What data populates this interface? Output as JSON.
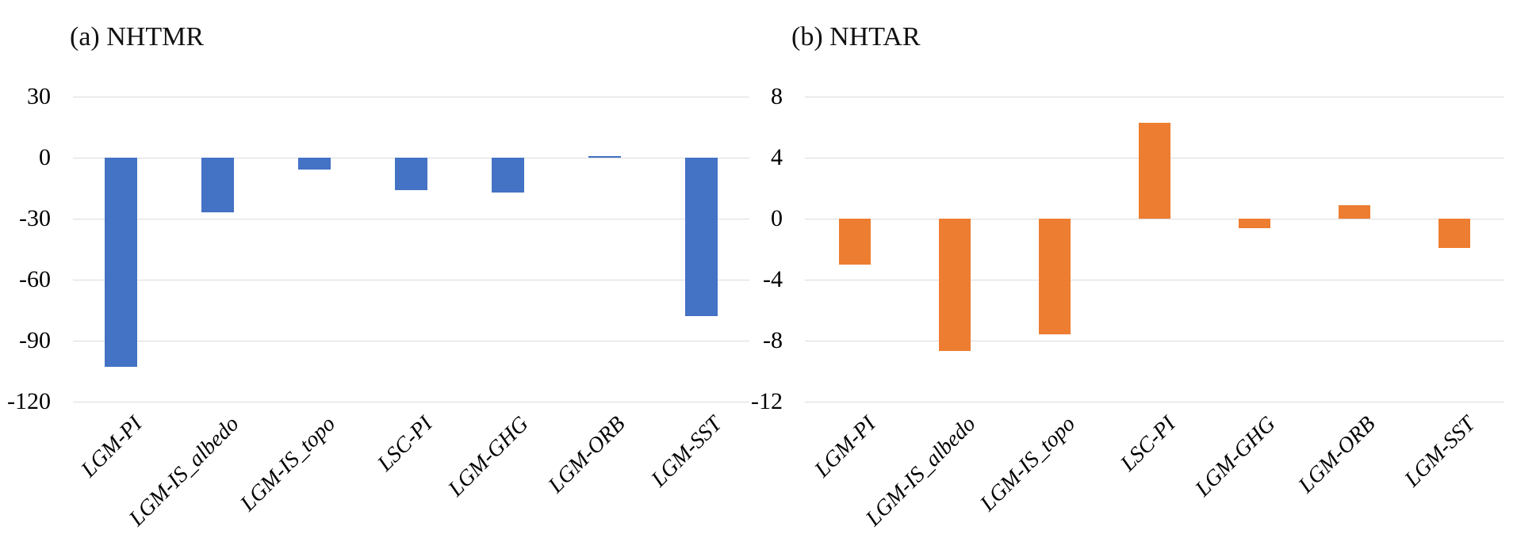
{
  "page": {
    "background": "#ffffff",
    "text_color": "#000000",
    "gridline_color": "#dcdcdc"
  },
  "chart_data": [
    {
      "id": "a",
      "type": "bar",
      "title": "(a) NHTMR",
      "xlabel": "",
      "ylabel": "",
      "bar_color": "#4472C4",
      "categories": [
        "LGM-PI",
        "LGM-IS_albedo",
        "LGM-IS_topo",
        "LSC-PI",
        "LGM-GHG",
        "LGM-ORB",
        "LGM-SST"
      ],
      "values": [
        -103,
        -27,
        -6,
        -16,
        -17,
        0.8,
        -78
      ],
      "ylim": [
        -120,
        30
      ],
      "yticks": [
        30,
        0,
        -30,
        -60,
        -90,
        -120
      ],
      "grid": true,
      "legend": "none",
      "tick_label_style": "italic-rotated-45"
    },
    {
      "id": "b",
      "type": "bar",
      "title": "(b) NHTAR",
      "xlabel": "",
      "ylabel": "",
      "bar_color": "#ED7D31",
      "categories": [
        "LGM-PI",
        "LGM-IS_albedo",
        "LGM-IS_topo",
        "LSC-PI",
        "LGM-GHG",
        "LGM-ORB",
        "LGM-SST"
      ],
      "values": [
        -3,
        -8.7,
        -7.6,
        6.3,
        -0.6,
        0.9,
        -1.9
      ],
      "ylim": [
        -12,
        8
      ],
      "yticks": [
        8,
        4,
        0,
        -4,
        -8,
        -12
      ],
      "grid": true,
      "legend": "none",
      "tick_label_style": "italic-rotated-45"
    }
  ]
}
